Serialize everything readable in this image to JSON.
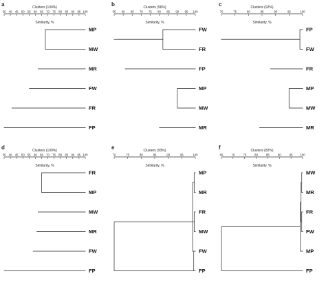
{
  "panels": [
    {
      "letter": "a",
      "title": "Clusters (100%)",
      "subtitle": "Similarity, %",
      "ticks": [
        "35",
        "40",
        "45",
        "50",
        "55",
        "60",
        "65",
        "70",
        "75",
        "80",
        "85",
        "90",
        "95",
        "100"
      ],
      "leaves": [
        "MP",
        "MW",
        "MR",
        "FW",
        "FR",
        "FP"
      ],
      "merges": [
        [
          0,
          1,
          68
        ],
        [
          2,
          2,
          62
        ],
        [
          3,
          3,
          55
        ],
        [
          4,
          4,
          41
        ],
        [
          5,
          5,
          35
        ]
      ]
    },
    {
      "letter": "b",
      "title": "Clusters (96%)",
      "subtitle": "Similarity, %",
      "ticks": [
        "55",
        "60",
        "65",
        "70",
        "75",
        "80",
        "85",
        "90",
        "95",
        "100"
      ],
      "leaves": [
        "FW",
        "FR",
        "FP",
        "MP",
        "MW",
        "MR"
      ],
      "merges": [
        [
          0,
          1,
          82
        ],
        [
          2,
          2,
          61
        ],
        [
          3,
          4,
          90
        ],
        [
          5,
          5,
          80
        ],
        [
          6,
          6,
          57
        ]
      ]
    },
    {
      "letter": "c",
      "title": "Clusters (92%)",
      "subtitle": "Similarity, %",
      "ticks": [
        "70",
        "75",
        "80",
        "85",
        "90",
        "95",
        "100"
      ],
      "leaves": [
        "FP",
        "FW",
        "FR",
        "MP",
        "MW",
        "MR"
      ],
      "merges": [
        [
          0,
          1,
          99
        ],
        [
          2,
          2,
          88
        ],
        [
          3,
          4,
          95
        ],
        [
          5,
          5,
          84
        ],
        [
          6,
          6,
          70
        ]
      ]
    },
    {
      "letter": "d",
      "title": "Clusters (100%)",
      "subtitle": "Similarity, %",
      "ticks": [
        "35",
        "40",
        "45",
        "50",
        "55",
        "60",
        "65",
        "70",
        "75",
        "80",
        "85",
        "90",
        "95",
        "100"
      ],
      "leaves": [
        "FR",
        "MP",
        "MW",
        "MR",
        "FW",
        "FP"
      ],
      "merges": [
        [
          0,
          1,
          65
        ],
        [
          2,
          2,
          62
        ],
        [
          3,
          3,
          61
        ],
        [
          4,
          4,
          58
        ],
        [
          5,
          5,
          35
        ]
      ]
    },
    {
      "letter": "e",
      "title": "Clusters (93%)",
      "subtitle": "Similarity, %",
      "ticks": [
        "70",
        "75",
        "80",
        "85",
        "90",
        "95",
        "100"
      ],
      "leaves": [
        "MP",
        "MR",
        "FR",
        "MW",
        "FW",
        "FP"
      ],
      "merges": [
        [
          0,
          1,
          99.6
        ],
        [
          2,
          3,
          99.6
        ],
        [
          4,
          5,
          99.4
        ],
        [
          6,
          4,
          99
        ],
        [
          7,
          5,
          70
        ]
      ]
    },
    {
      "letter": "f",
      "title": "Clusters (82%)",
      "subtitle": "Similarity, %",
      "ticks": [
        "65",
        "70",
        "75",
        "80",
        "85",
        "90",
        "95",
        "100"
      ],
      "leaves": [
        "MW",
        "MR",
        "FR",
        "FW",
        "MP",
        "FP"
      ],
      "merges": [
        [
          0,
          1,
          99.6
        ],
        [
          2,
          3,
          99.6
        ],
        [
          6,
          7,
          99.3
        ],
        [
          8,
          4,
          99
        ],
        [
          9,
          5,
          65
        ]
      ]
    }
  ]
}
